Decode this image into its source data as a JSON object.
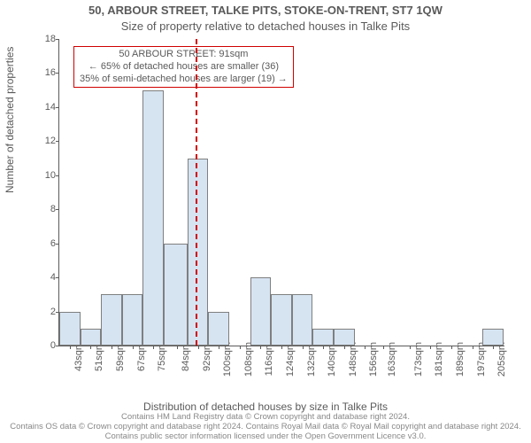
{
  "chart": {
    "type": "histogram",
    "title_main": "50, ARBOUR STREET, TALKE PITS, STOKE-ON-TRENT, ST7 1QW",
    "title_sub": "Size of property relative to detached houses in Talke Pits",
    "title_fontsize": 13,
    "ylabel": "Number of detached properties",
    "xlabel": "Distribution of detached houses by size in Talke Pits",
    "label_fontsize": 12,
    "tick_fontsize": 11,
    "xlim": [
      39,
      209
    ],
    "ylim": [
      0,
      18
    ],
    "ytick_step": 2,
    "yticks": [
      0,
      2,
      4,
      6,
      8,
      10,
      12,
      14,
      16,
      18
    ],
    "x_tick_centers": [
      43,
      51,
      59,
      67,
      75,
      84,
      92,
      100,
      108,
      116,
      124,
      132,
      140,
      148,
      156,
      163,
      173,
      181,
      189,
      197,
      205
    ],
    "x_tick_suffix": "sqm",
    "bar_fill": "#d6e4f2",
    "bar_border": "#7f7f7f",
    "grid": false,
    "background_color": "#ffffff",
    "axis_color": "#5a5a5a",
    "text_color": "#5a5a5a",
    "bars": [
      {
        "x0": 39,
        "x1": 47,
        "count": 2
      },
      {
        "x0": 47,
        "x1": 55,
        "count": 1
      },
      {
        "x0": 55,
        "x1": 63,
        "count": 3
      },
      {
        "x0": 63,
        "x1": 71,
        "count": 3
      },
      {
        "x0": 71,
        "x1": 79,
        "count": 15
      },
      {
        "x0": 79,
        "x1": 88,
        "count": 6
      },
      {
        "x0": 88,
        "x1": 96,
        "count": 11
      },
      {
        "x0": 96,
        "x1": 104,
        "count": 2
      },
      {
        "x0": 104,
        "x1": 112,
        "count": 0
      },
      {
        "x0": 112,
        "x1": 120,
        "count": 4
      },
      {
        "x0": 120,
        "x1": 128,
        "count": 3
      },
      {
        "x0": 128,
        "x1": 136,
        "count": 3
      },
      {
        "x0": 136,
        "x1": 144,
        "count": 1
      },
      {
        "x0": 144,
        "x1": 152,
        "count": 1
      },
      {
        "x0": 152,
        "x1": 160,
        "count": 0
      },
      {
        "x0": 160,
        "x1": 169,
        "count": 0
      },
      {
        "x0": 169,
        "x1": 177,
        "count": 0
      },
      {
        "x0": 177,
        "x1": 185,
        "count": 0
      },
      {
        "x0": 185,
        "x1": 193,
        "count": 0
      },
      {
        "x0": 193,
        "x1": 201,
        "count": 0
      },
      {
        "x0": 201,
        "x1": 209,
        "count": 1
      }
    ],
    "reference_line": {
      "x": 91,
      "color": "#d00000",
      "linestyle": "dashed",
      "linewidth": 2
    },
    "annotation": {
      "border_color": "#d00000",
      "background": "#ffffff",
      "fontsize": 11,
      "lines": [
        "50 ARBOUR STREET: 91sqm",
        "← 65% of detached houses are smaller (36)",
        "35% of semi-detached houses are larger (19) →"
      ]
    },
    "footer": "Contains HM Land Registry data © Crown copyright and database right 2024.\nContains OS data © Crown copyright and database right 2024. Contains Royal Mail data © Royal Mail copyright and database right 2024. Contains public sector information licensed under the Open Government Licence v3.0.",
    "footer_fontsize": 9.5,
    "footer_color": "#888888"
  }
}
